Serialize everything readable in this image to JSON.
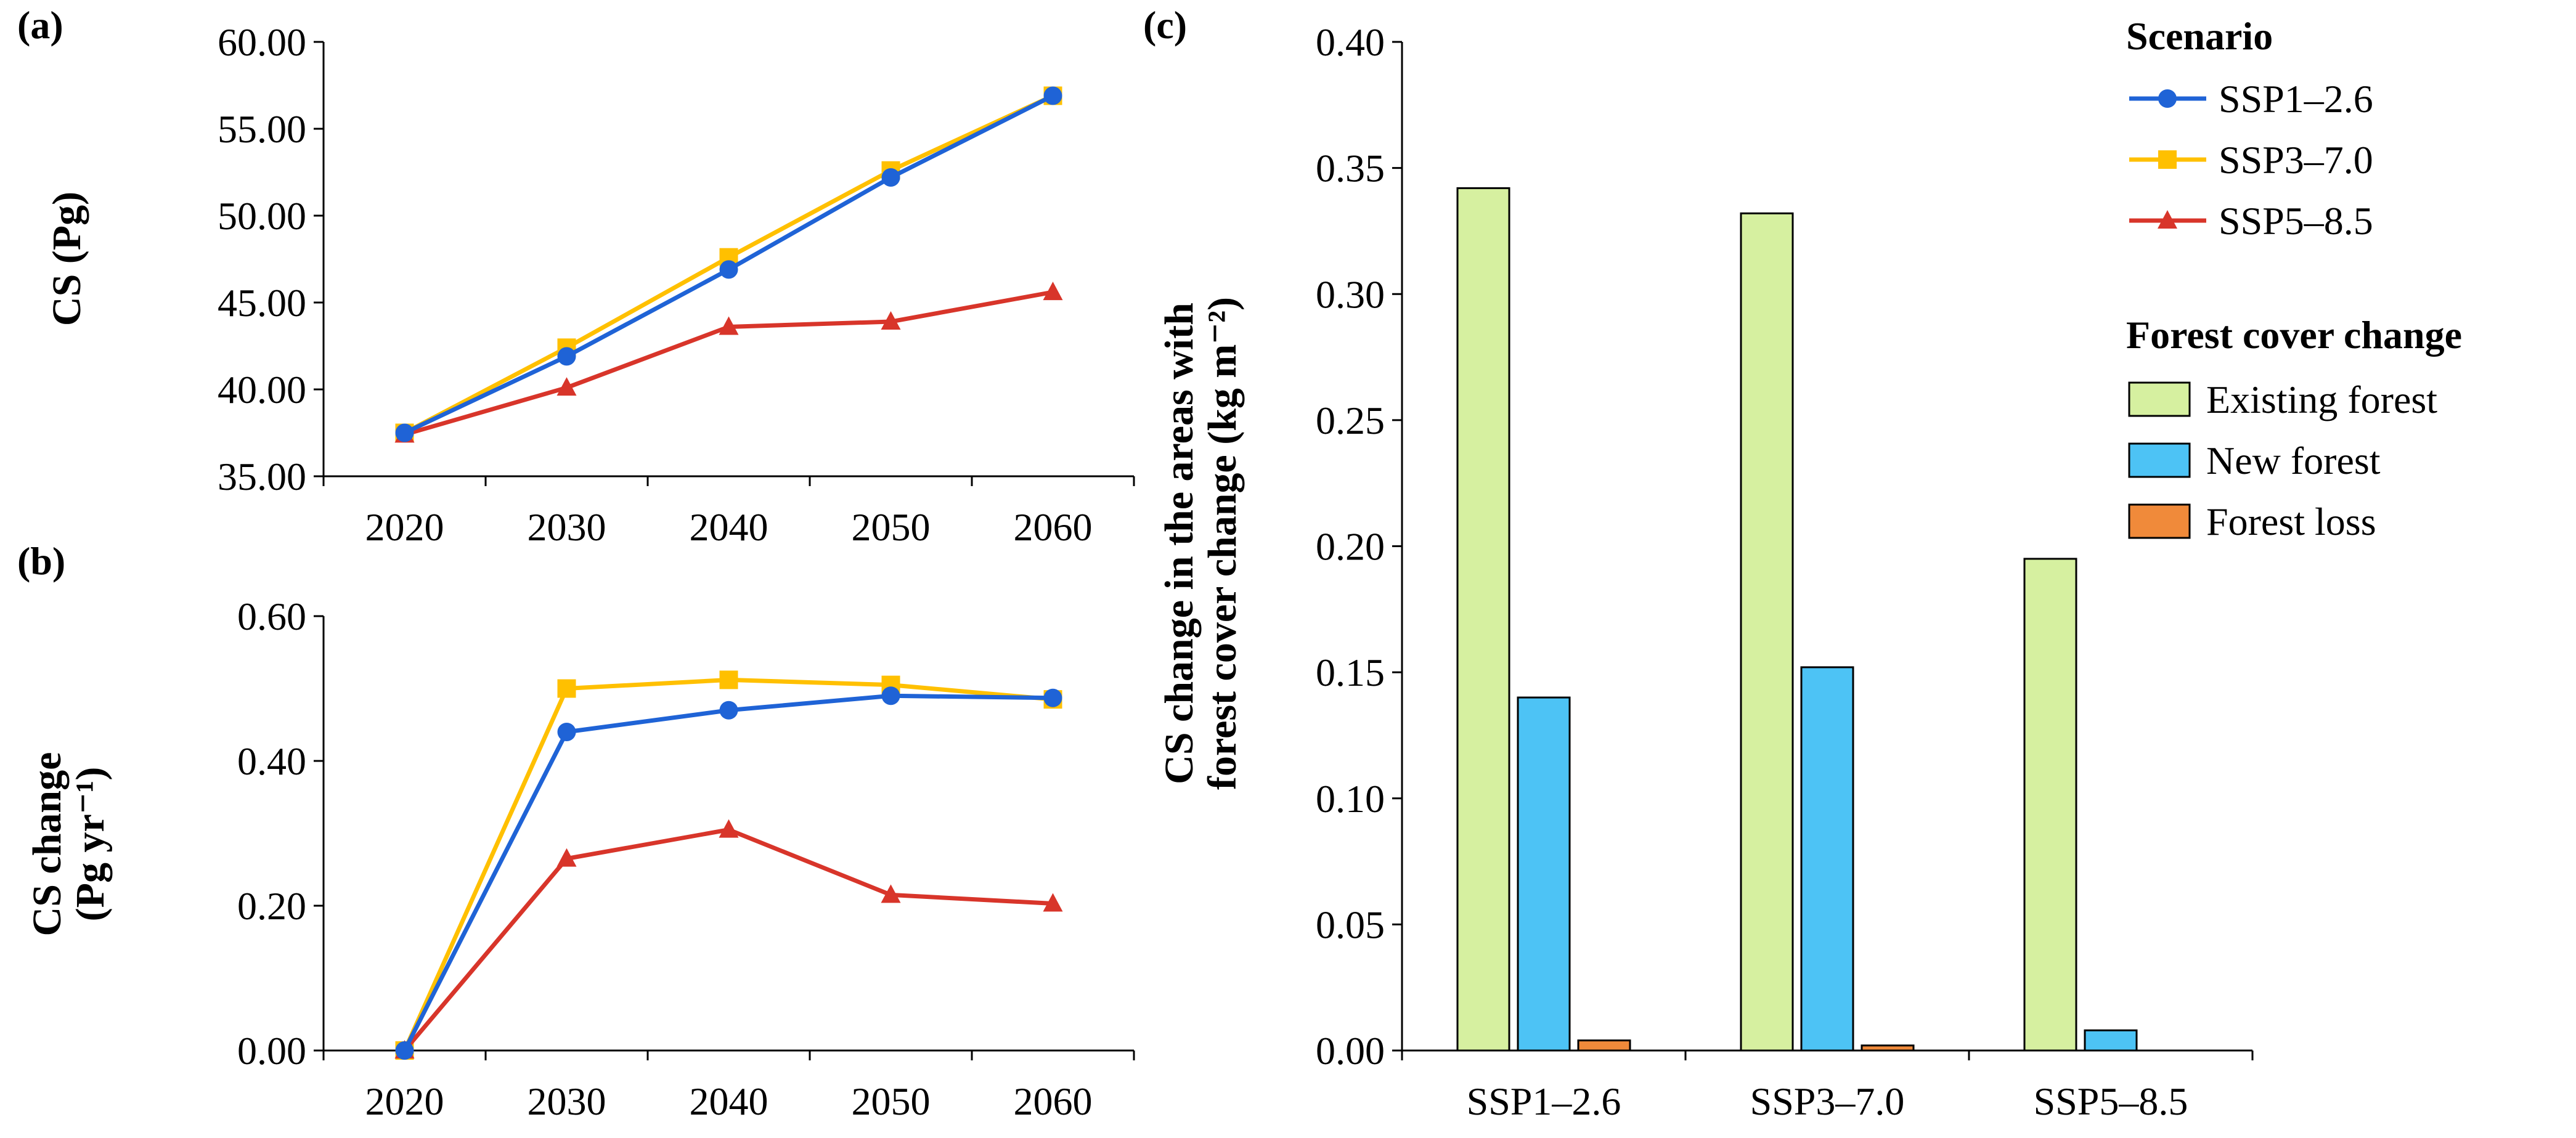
{
  "colors": {
    "ssp126": "#1f63d6",
    "ssp370": "#ffc000",
    "ssp585": "#d8352a",
    "existing_forest": "#d6f0a0",
    "new_forest": "#4dc3f5",
    "forest_loss": "#f08a3a"
  },
  "chart_data": [
    {
      "id": "a",
      "panel_label": "(a)",
      "type": "line",
      "ylabel": "CS (Pg)",
      "x": [
        "2020",
        "2030",
        "2040",
        "2050",
        "2060"
      ],
      "ylim": [
        35,
        60
      ],
      "yticks": [
        "35.00",
        "40.00",
        "45.00",
        "50.00",
        "55.00",
        "60.00"
      ],
      "series": [
        {
          "name": "SSP1–2.6",
          "marker": "circle",
          "color_key": "ssp126",
          "values": [
            37.5,
            41.9,
            46.9,
            52.2,
            56.9
          ]
        },
        {
          "name": "SSP3–7.0",
          "marker": "square",
          "color_key": "ssp370",
          "values": [
            37.5,
            42.4,
            47.6,
            52.6,
            56.9
          ]
        },
        {
          "name": "SSP5–8.5",
          "marker": "triangle",
          "color_key": "ssp585",
          "values": [
            37.4,
            40.1,
            43.6,
            43.9,
            45.6
          ]
        }
      ]
    },
    {
      "id": "b",
      "panel_label": "(b)",
      "type": "line",
      "ylabel_line1": "CS change",
      "ylabel_line2": "(Pg yr⁻¹)",
      "x": [
        "2020",
        "2030",
        "2040",
        "2050",
        "2060"
      ],
      "ylim": [
        0,
        0.6
      ],
      "yticks": [
        "0.00",
        "0.20",
        "0.40",
        "0.60"
      ],
      "series": [
        {
          "name": "SSP1–2.6",
          "marker": "circle",
          "color_key": "ssp126",
          "values": [
            0.0,
            0.44,
            0.47,
            0.49,
            0.487
          ]
        },
        {
          "name": "SSP3–7.0",
          "marker": "square",
          "color_key": "ssp370",
          "values": [
            0.0,
            0.5,
            0.512,
            0.505,
            0.485
          ]
        },
        {
          "name": "SSP5–8.5",
          "marker": "triangle",
          "color_key": "ssp585",
          "values": [
            0.0,
            0.265,
            0.305,
            0.215,
            0.203
          ]
        }
      ]
    },
    {
      "id": "c",
      "panel_label": "(c)",
      "type": "bar",
      "ylabel_line1": "CS change in the areas with",
      "ylabel_line2": "forest cover change (kg m⁻²)",
      "categories": [
        "SSP1–2.6",
        "SSP3–7.0",
        "SSP5–8.5"
      ],
      "ylim": [
        0,
        0.4
      ],
      "yticks": [
        "0.00",
        "0.05",
        "0.10",
        "0.15",
        "0.20",
        "0.25",
        "0.30",
        "0.35",
        "0.40"
      ],
      "series": [
        {
          "name": "Existing forest",
          "color_key": "existing_forest",
          "values": [
            0.342,
            0.332,
            0.195
          ]
        },
        {
          "name": "New forest",
          "color_key": "new_forest",
          "values": [
            0.14,
            0.152,
            0.008
          ]
        },
        {
          "name": "Forest loss",
          "color_key": "forest_loss",
          "values": [
            0.004,
            0.002,
            0.0
          ]
        }
      ]
    }
  ],
  "legend": {
    "scenario_title": "Scenario",
    "scenario_items": [
      "SSP1–2.6",
      "SSP3–7.0",
      "SSP5–8.5"
    ],
    "forest_title": "Forest cover change",
    "forest_items": [
      "Existing forest",
      "New forest",
      "Forest loss"
    ]
  }
}
